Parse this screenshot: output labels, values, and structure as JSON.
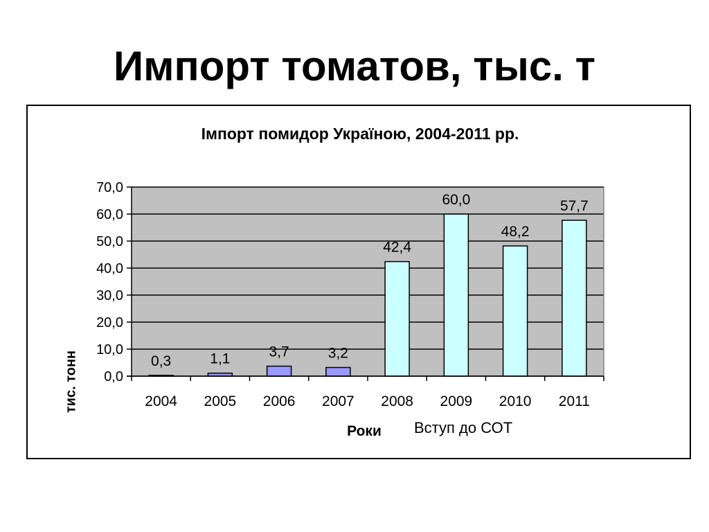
{
  "slide": {
    "title": "Импорт томатов, тыс. т"
  },
  "colors": {
    "plot_bg": "#c0c0c0",
    "bar_before": "#9999ff",
    "bar_after": "#ccffff",
    "bar_outline": "#000000"
  },
  "chart_data": {
    "type": "bar",
    "title": "Імпорт помидор Україною, 2004-2011 рр.",
    "xlabel": "Роки",
    "ylabel": "тис. тонн",
    "annotation": "Вступ до СОТ",
    "categories": [
      "2004",
      "2005",
      "2006",
      "2007",
      "2008",
      "2009",
      "2010",
      "2011"
    ],
    "values": [
      0.3,
      1.1,
      3.7,
      3.2,
      42.4,
      60.0,
      48.2,
      57.7
    ],
    "data_labels": [
      "0,3",
      "1,1",
      "3,7",
      "3,2",
      "42,4",
      "60,0",
      "48,2",
      "57,7"
    ],
    "bar_color_group": [
      "before",
      "before",
      "before",
      "before",
      "after",
      "after",
      "after",
      "after"
    ],
    "ylim": [
      0,
      70
    ],
    "yticks": [
      0,
      10,
      20,
      30,
      40,
      50,
      60,
      70
    ],
    "ytick_labels": [
      "0,0",
      "10,0",
      "20,0",
      "30,0",
      "40,0",
      "50,0",
      "60,0",
      "70,0"
    ],
    "grid": true,
    "legend": "none"
  }
}
